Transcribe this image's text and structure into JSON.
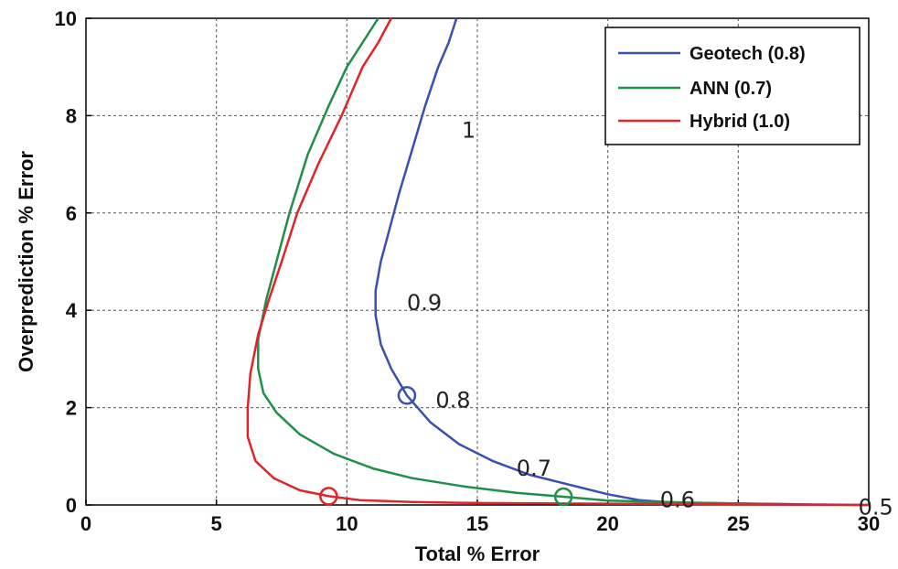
{
  "chart_data": {
    "type": "line",
    "xlabel": "Total % Error",
    "ylabel": "Overprediction % Error",
    "xlim": [
      0,
      30
    ],
    "ylim": [
      0,
      10
    ],
    "xticks": [
      0,
      5,
      10,
      15,
      20,
      25,
      30
    ],
    "yticks": [
      0,
      2,
      4,
      6,
      8,
      10
    ],
    "grid": true,
    "legend_position": "top-right",
    "series": [
      {
        "name": "Geotech (0.8)",
        "color": "#3a4fb0",
        "points": [
          [
            14.2,
            10
          ],
          [
            13.9,
            9.5
          ],
          [
            13.5,
            9
          ],
          [
            13.0,
            8.2
          ],
          [
            12.5,
            7.3
          ],
          [
            12.0,
            6.4
          ],
          [
            11.6,
            5.6
          ],
          [
            11.3,
            5.0
          ],
          [
            11.1,
            4.4
          ],
          [
            11.1,
            3.9
          ],
          [
            11.3,
            3.3
          ],
          [
            11.7,
            2.8
          ],
          [
            12.3,
            2.25
          ],
          [
            13.2,
            1.7
          ],
          [
            14.3,
            1.25
          ],
          [
            15.6,
            0.9
          ],
          [
            17.0,
            0.62
          ],
          [
            18.5,
            0.42
          ],
          [
            20.0,
            0.22
          ],
          [
            21.2,
            0.1
          ],
          [
            22.2,
            0.06
          ],
          [
            23.5,
            0.04
          ],
          [
            25.0,
            0.03
          ],
          [
            26.5,
            0.02
          ],
          [
            28.0,
            0.01
          ],
          [
            30.0,
            0.0
          ]
        ]
      },
      {
        "name": "ANN (0.7)",
        "color": "#1f8f4a",
        "points": [
          [
            11.2,
            10
          ],
          [
            10.6,
            9.5
          ],
          [
            10.0,
            9.0
          ],
          [
            9.3,
            8.2
          ],
          [
            8.5,
            7.2
          ],
          [
            7.8,
            6.0
          ],
          [
            7.3,
            5.0
          ],
          [
            6.9,
            4.2
          ],
          [
            6.6,
            3.4
          ],
          [
            6.6,
            2.8
          ],
          [
            6.8,
            2.3
          ],
          [
            7.3,
            1.9
          ],
          [
            8.2,
            1.45
          ],
          [
            9.5,
            1.05
          ],
          [
            11.0,
            0.75
          ],
          [
            12.5,
            0.55
          ],
          [
            14.5,
            0.38
          ],
          [
            16.5,
            0.25
          ],
          [
            18.3,
            0.17
          ],
          [
            20.0,
            0.09
          ],
          [
            22.0,
            0.06
          ],
          [
            24.0,
            0.04
          ],
          [
            26.0,
            0.02
          ]
        ]
      },
      {
        "name": "Hybrid (1.0)",
        "color": "#e02428",
        "points": [
          [
            11.7,
            10
          ],
          [
            11.2,
            9.5
          ],
          [
            10.6,
            9.0
          ],
          [
            9.8,
            8.0
          ],
          [
            8.9,
            7.0
          ],
          [
            8.1,
            6.0
          ],
          [
            7.5,
            5.0
          ],
          [
            7.0,
            4.2
          ],
          [
            6.6,
            3.5
          ],
          [
            6.3,
            2.7
          ],
          [
            6.2,
            2.0
          ],
          [
            6.2,
            1.4
          ],
          [
            6.5,
            0.9
          ],
          [
            7.2,
            0.55
          ],
          [
            8.2,
            0.3
          ],
          [
            9.3,
            0.18
          ],
          [
            10.5,
            0.1
          ],
          [
            12.5,
            0.06
          ],
          [
            15.0,
            0.04
          ],
          [
            18.0,
            0.03
          ],
          [
            22.0,
            0.02
          ],
          [
            26.0,
            0.01
          ],
          [
            30.0,
            0.0
          ]
        ]
      }
    ],
    "markers": [
      {
        "x": 12.3,
        "y": 2.25,
        "color": "#3a4fb0"
      },
      {
        "x": 18.3,
        "y": 0.17,
        "color": "#1f8f4a"
      },
      {
        "x": 9.3,
        "y": 0.18,
        "color": "#e02428"
      }
    ],
    "annotations": [
      {
        "text": "1",
        "x": 14.4,
        "y": 7.55
      },
      {
        "text": "0.9",
        "x": 12.3,
        "y": 4.0
      },
      {
        "text": "0.8",
        "x": 13.4,
        "y": 2.0
      },
      {
        "text": "0.7",
        "x": 16.5,
        "y": 0.6
      },
      {
        "text": "0.6",
        "x": 22.0,
        "y": -0.05
      },
      {
        "text": "0.5",
        "x": 29.6,
        "y": -0.2
      }
    ]
  }
}
